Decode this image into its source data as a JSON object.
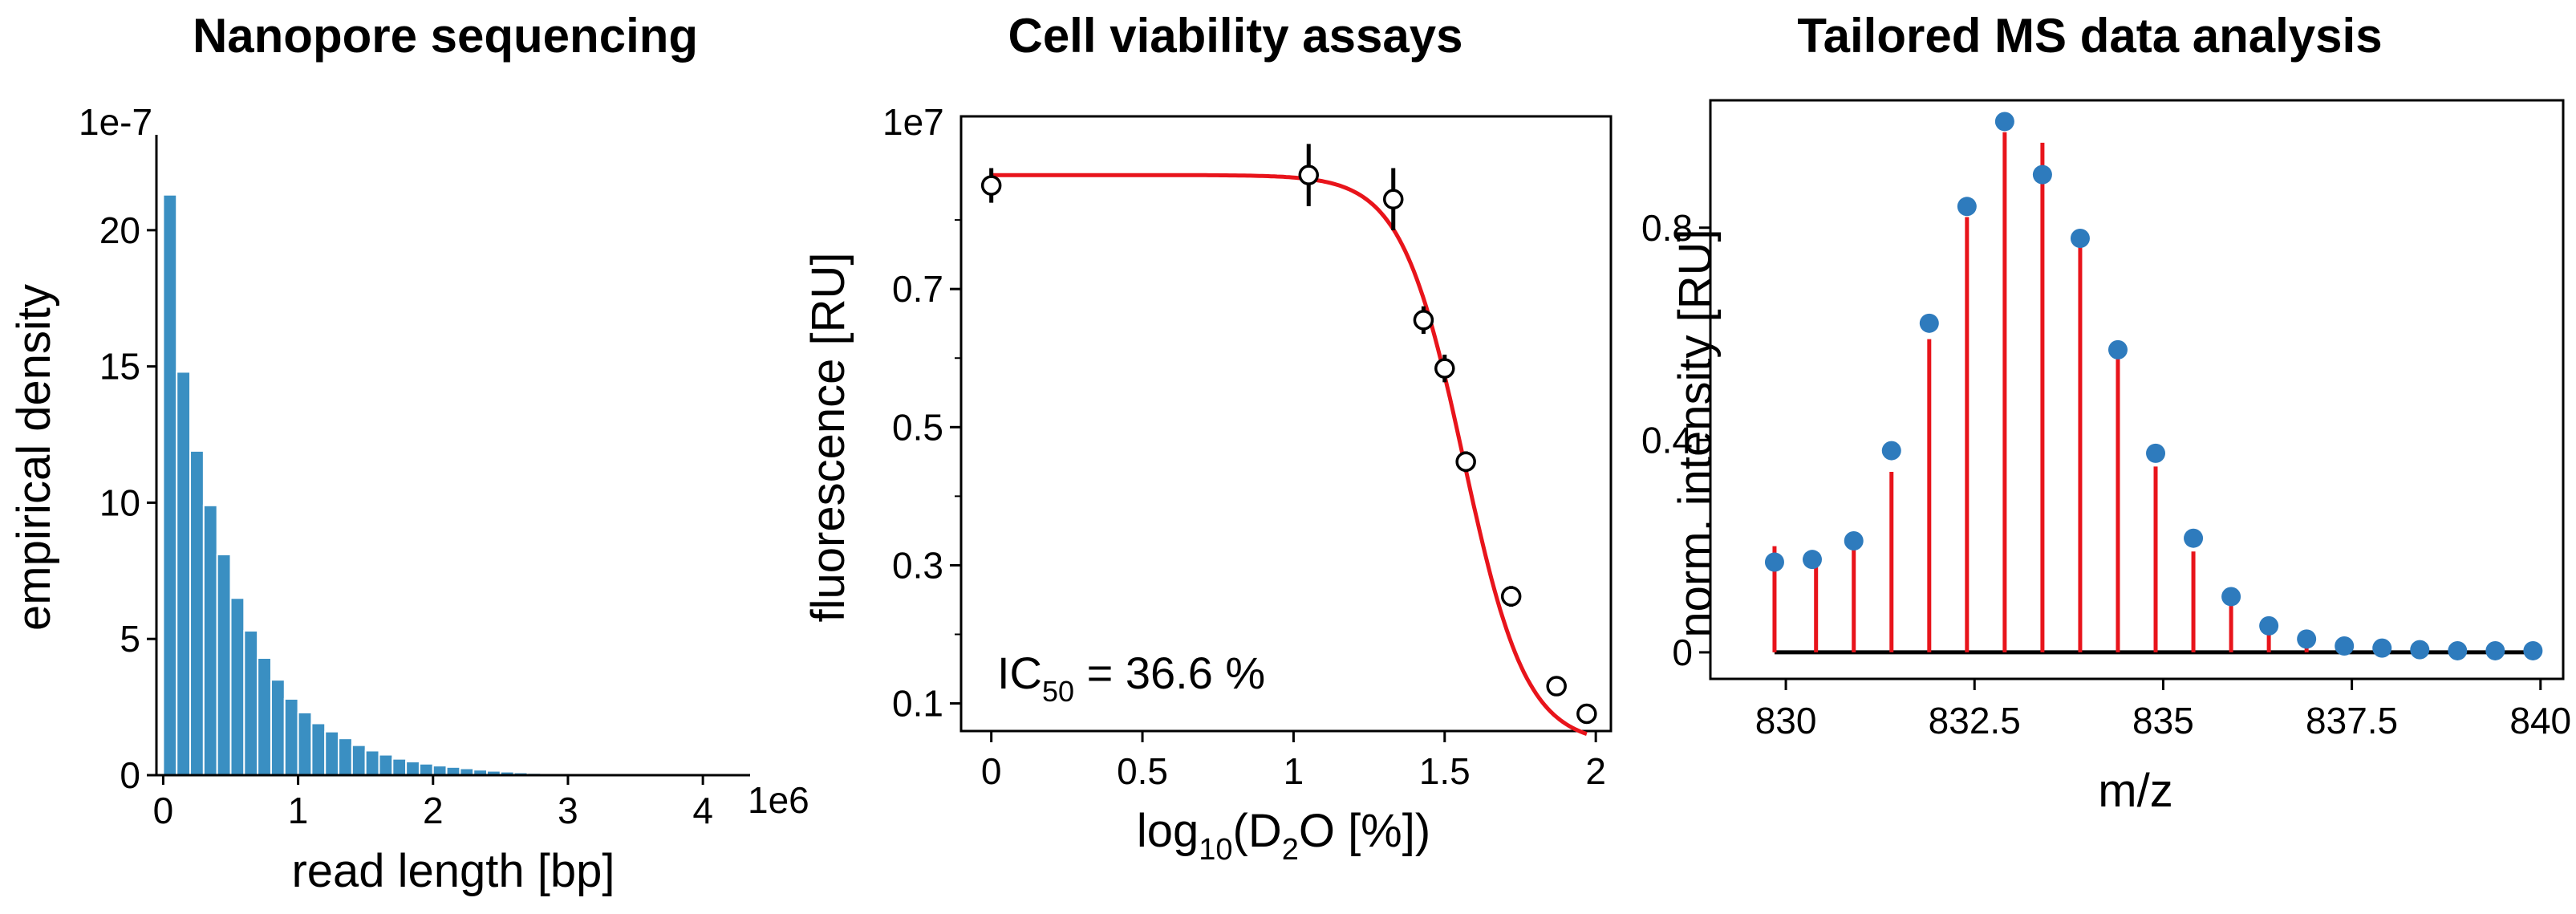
{
  "colors": {
    "bar": "#3a8fc2",
    "fit": "#e8141b",
    "stem": "#e8141b",
    "point_ms": "#2e7bbd",
    "baseline": "#000000"
  },
  "chart_data": [
    {
      "type": "bar",
      "title": "Nanopore sequencing",
      "xlabel": "read length [bp]",
      "ylabel": "empirical density",
      "x_offset_label": "1e6",
      "y_offset_label": "1e-7",
      "xlim": [
        -0.05,
        4.35
      ],
      "ylim": [
        0,
        23.5
      ],
      "xticks": [
        0,
        1,
        2,
        3,
        4
      ],
      "xtick_labels": [
        "0",
        "1",
        "2",
        "3",
        "4"
      ],
      "yticks": [
        0,
        5,
        10,
        15,
        20
      ],
      "ytick_labels": [
        "0",
        "5",
        "10",
        "15",
        "20"
      ],
      "bin_width": 0.1,
      "bin_starts": [
        0.0,
        0.1,
        0.2,
        0.3,
        0.4,
        0.5,
        0.6,
        0.7,
        0.8,
        0.9,
        1.0,
        1.1,
        1.2,
        1.3,
        1.4,
        1.5,
        1.6,
        1.7,
        1.8,
        1.9,
        2.0,
        2.1,
        2.2,
        2.3,
        2.4,
        2.5,
        2.6,
        2.7,
        2.8,
        2.9,
        3.0,
        3.1,
        3.2,
        3.3,
        3.4,
        3.5,
        3.6,
        3.7,
        3.8,
        3.9,
        4.0,
        4.1
      ],
      "values": [
        21.3,
        14.8,
        11.9,
        9.9,
        8.1,
        6.5,
        5.3,
        4.3,
        3.5,
        2.8,
        2.3,
        1.9,
        1.6,
        1.35,
        1.1,
        0.9,
        0.75,
        0.6,
        0.5,
        0.42,
        0.35,
        0.3,
        0.25,
        0.2,
        0.16,
        0.13,
        0.1,
        0.08,
        0.07,
        0.06,
        0.05,
        0.04,
        0.03,
        0.03,
        0.02,
        0.02,
        0.02,
        0.01,
        0.01,
        0.01,
        0.01,
        0.01
      ]
    },
    {
      "type": "scatter",
      "title": "Cell viability assays",
      "xlabel_parts": [
        "log",
        "10",
        "(D",
        "2",
        "O [%])"
      ],
      "ylabel": "fluorescence [RU]",
      "y_offset_label": "1e7",
      "xlim": [
        -0.1,
        2.05
      ],
      "ylim": [
        0.06,
        0.95
      ],
      "xticks": [
        0,
        0.5,
        1,
        1.5,
        2
      ],
      "xtick_labels": [
        "0",
        "0.5",
        "1",
        "1.5",
        "2"
      ],
      "yticks": [
        0.1,
        0.3,
        0.5,
        0.7
      ],
      "ytick_labels": [
        "0.1",
        "0.3",
        "0.5",
        "0.7"
      ],
      "minor_yticks": [
        0.2,
        0.4,
        0.6,
        0.8
      ],
      "annotation_parts": [
        "IC",
        "50",
        " = 36.6 %"
      ],
      "ic50_percent": 36.6,
      "points": [
        {
          "x": 0.0,
          "y": 0.85,
          "err": 0.025
        },
        {
          "x": 1.05,
          "y": 0.865,
          "err": 0.045
        },
        {
          "x": 1.33,
          "y": 0.83,
          "err": 0.045
        },
        {
          "x": 1.43,
          "y": 0.655,
          "err": 0.02
        },
        {
          "x": 1.5,
          "y": 0.585,
          "err": 0.02
        },
        {
          "x": 1.57,
          "y": 0.45,
          "err": 0.015
        },
        {
          "x": 1.72,
          "y": 0.255,
          "err": 0.015
        },
        {
          "x": 1.87,
          "y": 0.125,
          "err": 0.007
        },
        {
          "x": 1.97,
          "y": 0.085,
          "err": 0.005
        }
      ],
      "fit": {
        "top": 0.865,
        "bottom": 0.04,
        "log_ic50": 1.563,
        "hill": 4.2,
        "x_range": [
          0,
          1.97
        ]
      }
    },
    {
      "type": "stem",
      "title": "Tailored MS data analysis",
      "xlabel": "m/z",
      "ylabel": "norm. intensity [RU]",
      "xlim": [
        829.0,
        840.3
      ],
      "ylim": [
        -0.05,
        1.04
      ],
      "xticks": [
        830,
        832.5,
        835,
        837.5,
        840
      ],
      "xtick_labels": [
        "830",
        "832.5",
        "835",
        "837.5",
        "840"
      ],
      "yticks": [
        0,
        0.4,
        0.8
      ],
      "ytick_labels": [
        "0",
        "0.4",
        "0.8"
      ],
      "baseline_range": [
        829.85,
        840.0
      ],
      "stems": {
        "x": [
          829.85,
          830.4,
          830.9,
          831.4,
          831.9,
          832.4,
          832.9,
          833.4,
          833.9,
          834.4,
          834.9,
          835.4,
          835.9,
          836.4,
          836.9,
          837.4,
          837.9,
          838.4,
          838.9,
          839.4,
          839.9
        ],
        "y": [
          0.2,
          0.18,
          0.2,
          0.34,
          0.59,
          0.82,
          0.98,
          0.96,
          0.77,
          0.56,
          0.35,
          0.19,
          0.09,
          0.04,
          0.02,
          0.01,
          0.01,
          0.01,
          0.01,
          0.01,
          0.01
        ]
      },
      "points": {
        "x": [
          829.85,
          830.35,
          830.9,
          831.4,
          831.9,
          832.4,
          832.9,
          833.4,
          833.9,
          834.4,
          834.9,
          835.4,
          835.9,
          836.4,
          836.9,
          837.4,
          837.9,
          838.4,
          838.9,
          839.4,
          839.9
        ],
        "y": [
          0.17,
          0.175,
          0.21,
          0.38,
          0.62,
          0.84,
          1.0,
          0.9,
          0.78,
          0.57,
          0.375,
          0.215,
          0.105,
          0.05,
          0.025,
          0.012,
          0.008,
          0.005,
          0.003,
          0.003,
          0.003
        ]
      }
    }
  ]
}
